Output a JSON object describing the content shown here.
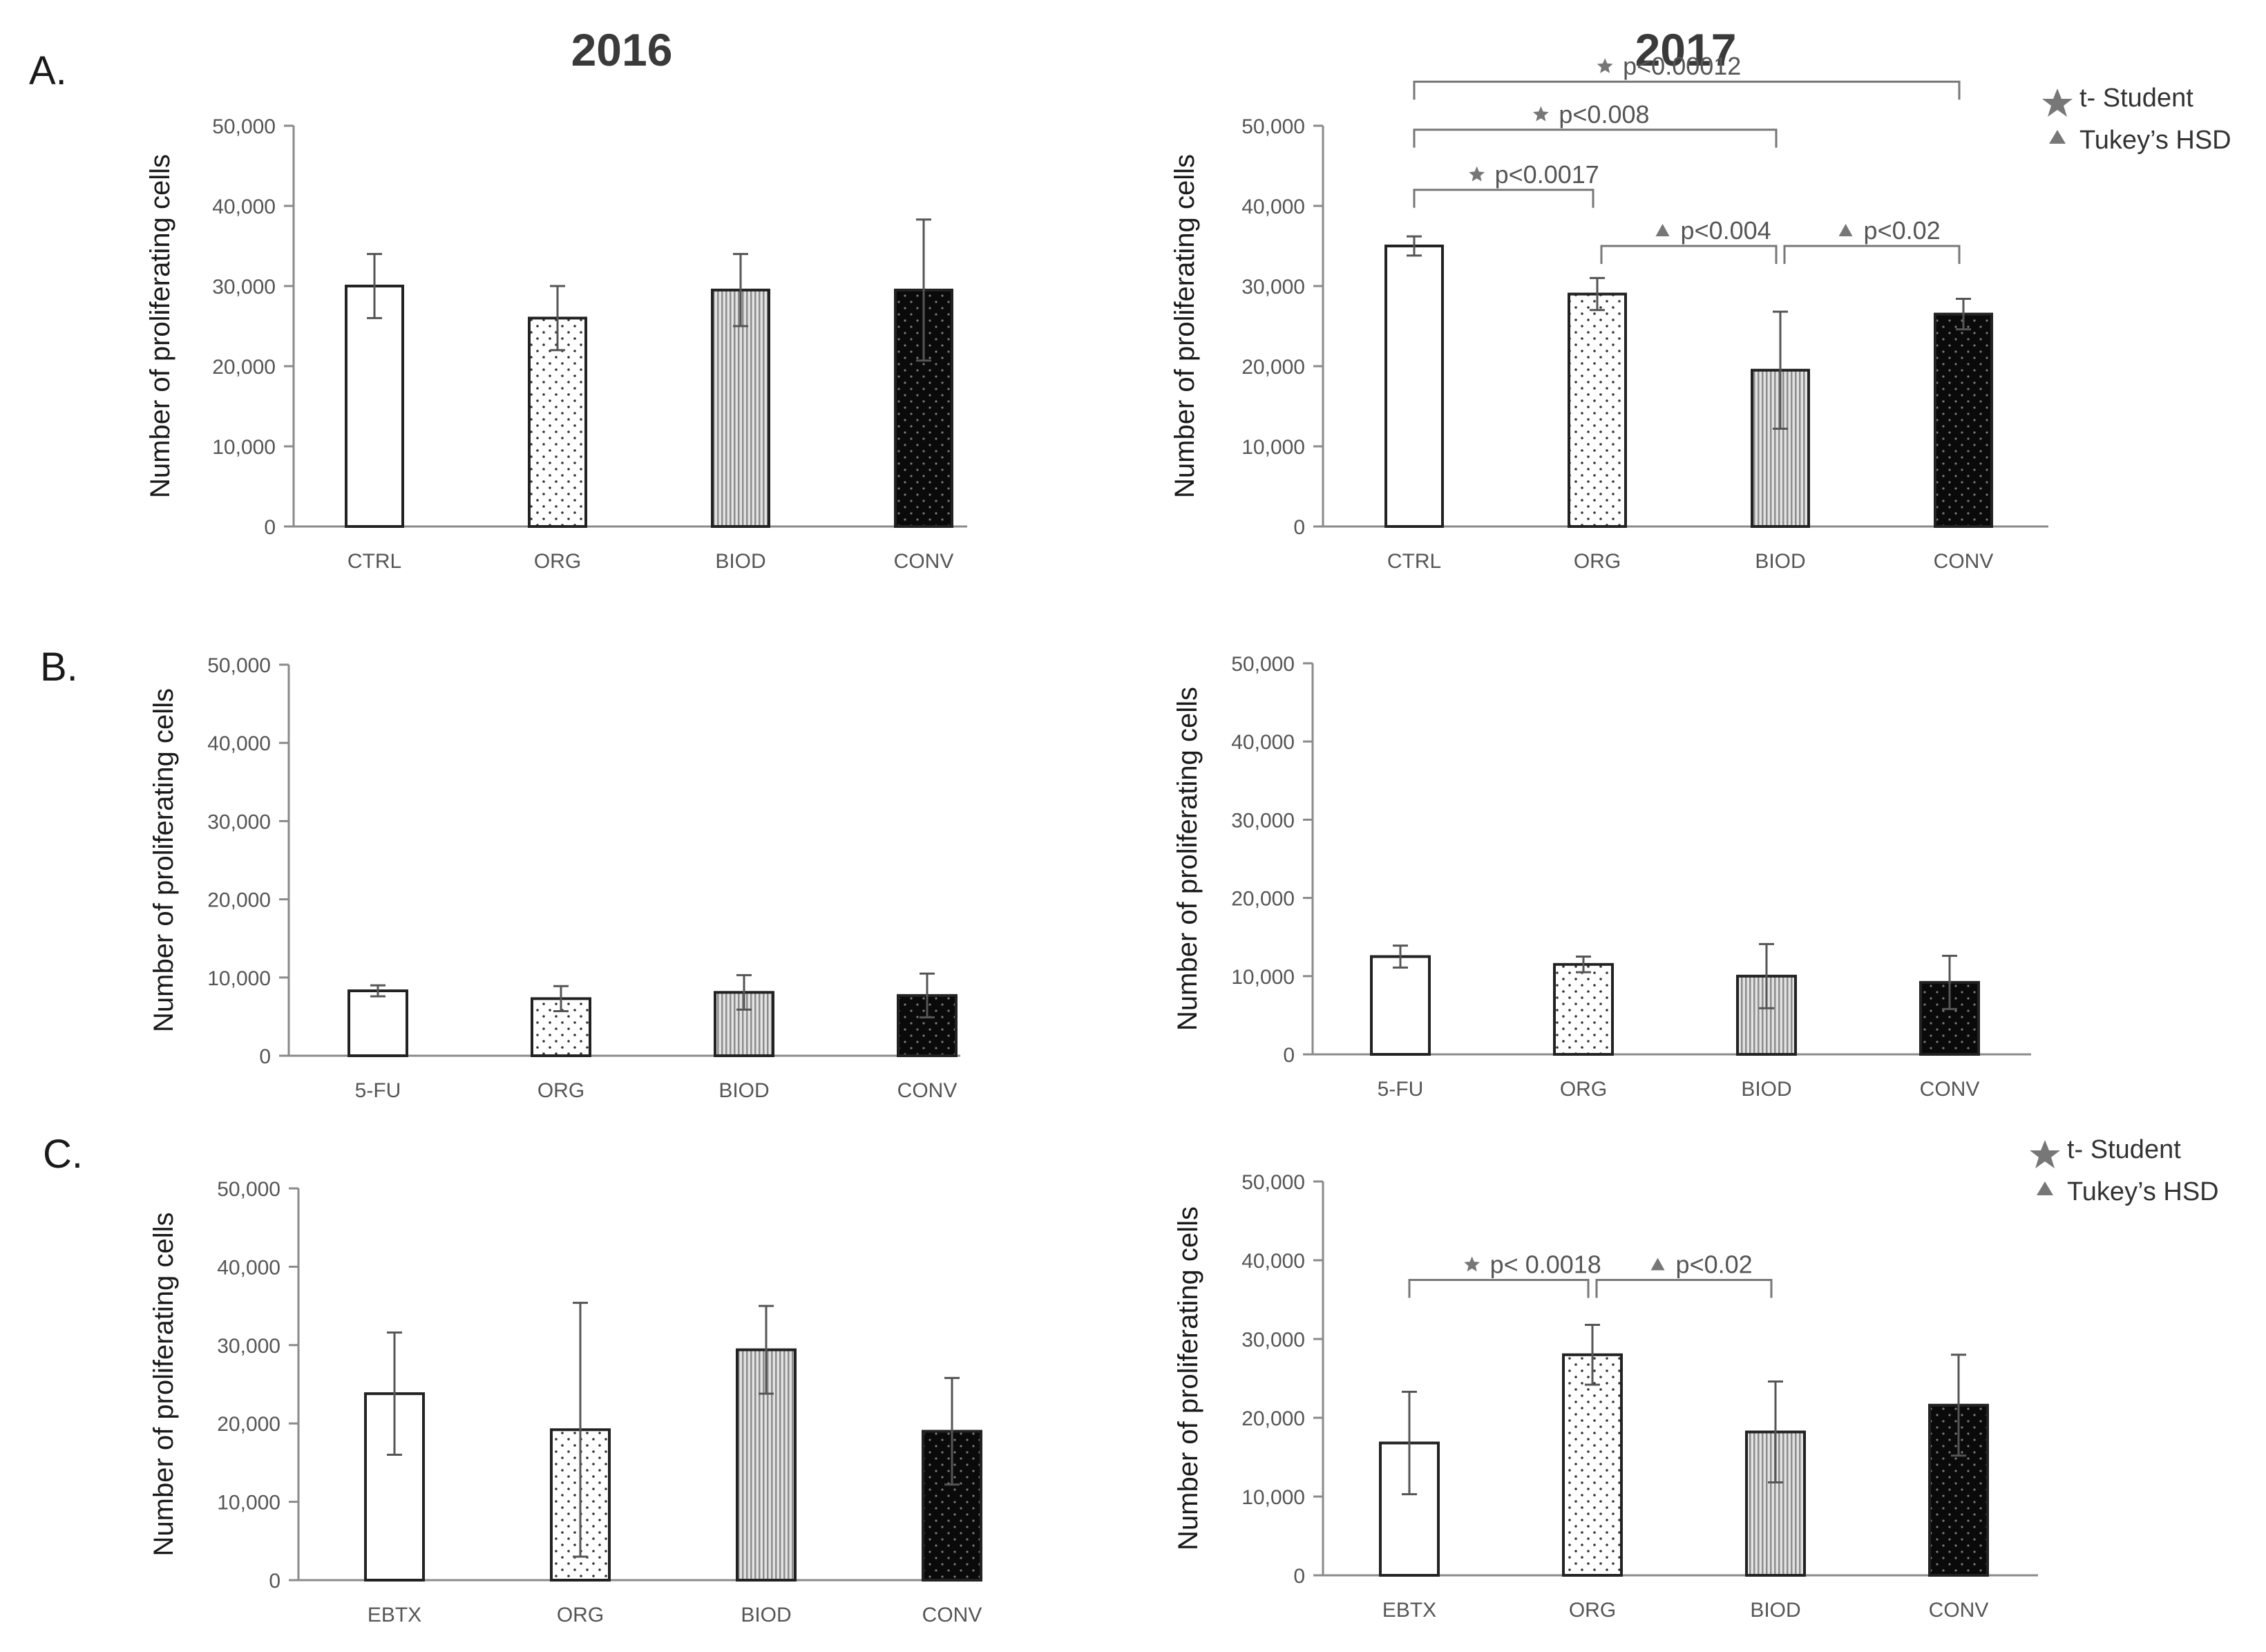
{
  "figure": {
    "years": [
      "2016",
      "2017"
    ],
    "legend": [
      {
        "marker": "star",
        "label": "t- Student"
      },
      {
        "marker": "triangle",
        "label": "Tukey’s HSD"
      }
    ]
  },
  "chart_data": [
    {
      "id": "A-2016",
      "type": "bar",
      "row_label": "A.",
      "year": "2016",
      "ylabel": "Number of proliferating cells",
      "ylim": [
        0,
        50000
      ],
      "yticks": [
        "0",
        "10,000",
        "20,000",
        "30,000",
        "40,000",
        "50,000"
      ],
      "categories": [
        "CTRL",
        "ORG",
        "BIOD",
        "CONV"
      ],
      "values": [
        30000,
        26000,
        29500,
        29500
      ],
      "errors": [
        4000,
        4000,
        4500,
        8800
      ],
      "patterns": [
        "white",
        "dots",
        "stripes",
        "black"
      ],
      "annotations": []
    },
    {
      "id": "A-2017",
      "type": "bar",
      "row_label": "",
      "year": "2017",
      "ylabel": "Number of proliferating cells",
      "ylim": [
        0,
        50000
      ],
      "yticks": [
        "0",
        "10,000",
        "20,000",
        "30,000",
        "40,000",
        "50,000"
      ],
      "categories": [
        "CTRL",
        "ORG",
        "BIOD",
        "CONV"
      ],
      "values": [
        35000,
        29000,
        19500,
        26500
      ],
      "errors": [
        1200,
        2000,
        7300,
        1900
      ],
      "patterns": [
        "white",
        "dots",
        "stripes",
        "black"
      ],
      "annotations": [
        {
          "from": 0,
          "to": 1,
          "level": 42000,
          "marker": "star",
          "text": "p<0.0017"
        },
        {
          "from": 1,
          "to": 2,
          "level": 35000,
          "marker": "triangle",
          "text": "p<0.004"
        },
        {
          "from": 2,
          "to": 3,
          "level": 35000,
          "marker": "triangle",
          "text": "p<0.02"
        },
        {
          "from": 0,
          "to": 2,
          "level": 49500,
          "marker": "star",
          "text": "p<0.008"
        },
        {
          "from": 0,
          "to": 3,
          "level": 55500,
          "marker": "star",
          "text": "p<0.00012"
        }
      ]
    },
    {
      "id": "B-2016",
      "type": "bar",
      "row_label": "B.",
      "year": "2016",
      "ylabel": "Number of proliferating cells",
      "ylim": [
        0,
        50000
      ],
      "yticks": [
        "0",
        "10,000",
        "20,000",
        "30,000",
        "40,000",
        "50,000"
      ],
      "categories": [
        "5-FU",
        "ORG",
        "BIOD",
        "CONV"
      ],
      "values": [
        8300,
        7300,
        8100,
        7700
      ],
      "errors": [
        700,
        1600,
        2200,
        2800
      ],
      "patterns": [
        "white",
        "dots",
        "stripes",
        "black"
      ],
      "annotations": []
    },
    {
      "id": "B-2017",
      "type": "bar",
      "row_label": "",
      "year": "2017",
      "ylabel": "Number of proliferating cells",
      "ylim": [
        0,
        50000
      ],
      "yticks": [
        "0",
        "10,000",
        "20,000",
        "30,000",
        "40,000",
        "50,000"
      ],
      "categories": [
        "5-FU",
        "ORG",
        "BIOD",
        "CONV"
      ],
      "values": [
        12500,
        11500,
        10000,
        9200
      ],
      "errors": [
        1400,
        1000,
        4100,
        3400
      ],
      "patterns": [
        "white",
        "dots",
        "stripes",
        "black"
      ],
      "annotations": []
    },
    {
      "id": "C-2016",
      "type": "bar",
      "row_label": "C.",
      "year": "2016",
      "ylabel": "Number of proliferating cells",
      "ylim": [
        0,
        50000
      ],
      "yticks": [
        "0",
        "10,000",
        "20,000",
        "30,000",
        "40,000",
        "50,000"
      ],
      "categories": [
        "EBTX",
        "ORG",
        "BIOD",
        "CONV"
      ],
      "values": [
        23800,
        19200,
        29400,
        19000
      ],
      "errors": [
        7800,
        16200,
        5600,
        6800
      ],
      "patterns": [
        "white",
        "dots",
        "stripes",
        "black"
      ],
      "annotations": []
    },
    {
      "id": "C-2017",
      "type": "bar",
      "row_label": "",
      "year": "2017",
      "ylabel": "Number of proliferating cells",
      "ylim": [
        0,
        50000
      ],
      "yticks": [
        "0",
        "10,000",
        "20,000",
        "30,000",
        "40,000",
        "50,000"
      ],
      "categories": [
        "EBTX",
        "ORG",
        "BIOD",
        "CONV"
      ],
      "values": [
        16800,
        28000,
        18200,
        21600
      ],
      "errors": [
        6500,
        3800,
        6400,
        6400
      ],
      "patterns": [
        "white",
        "dots",
        "stripes",
        "black"
      ],
      "annotations": [
        {
          "from": 0,
          "to": 1,
          "level": 37500,
          "marker": "star",
          "text": "p< 0.0018"
        },
        {
          "from": 1,
          "to": 2,
          "level": 37500,
          "marker": "triangle",
          "text": "p<0.02"
        }
      ]
    }
  ]
}
